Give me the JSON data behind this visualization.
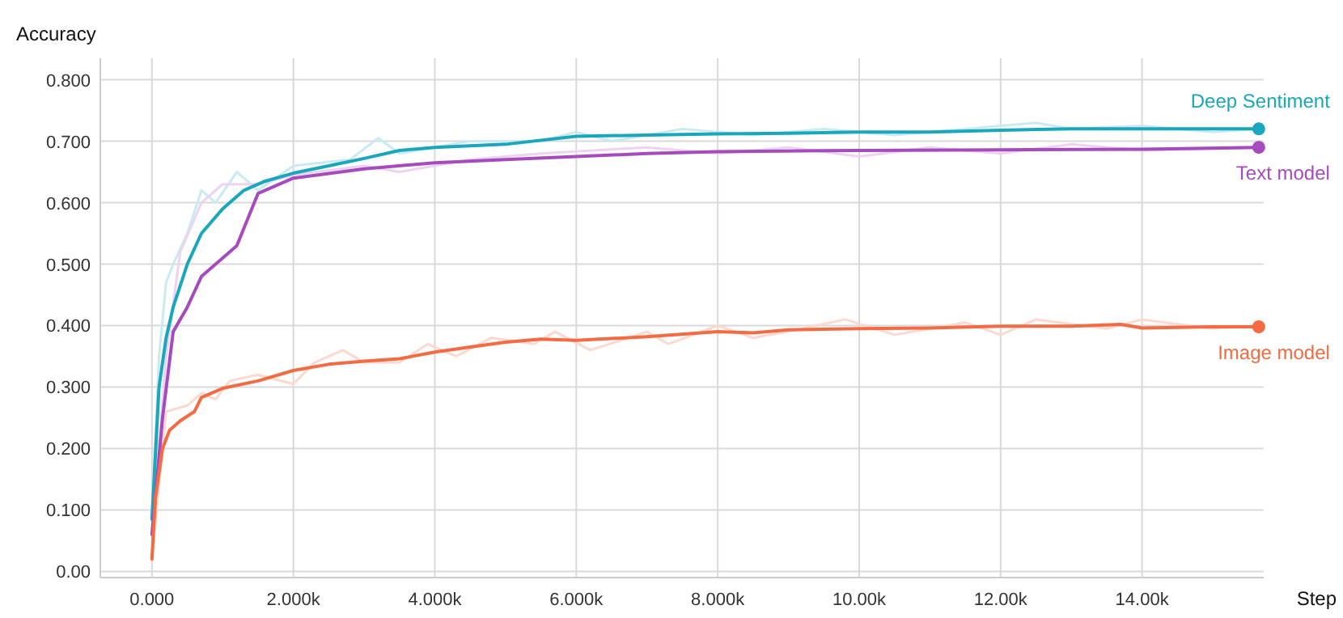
{
  "chart_data": {
    "type": "line",
    "ylabel": "Accuracy",
    "xlabel": "Step",
    "xlim": [
      -730,
      15720
    ],
    "ylim": [
      -0.01,
      0.835
    ],
    "xticks": [
      {
        "value": 0,
        "label": "0.000"
      },
      {
        "value": 2000,
        "label": "2.000k"
      },
      {
        "value": 4000,
        "label": "4.000k"
      },
      {
        "value": 6000,
        "label": "6.000k"
      },
      {
        "value": 8000,
        "label": "8.000k"
      },
      {
        "value": 10000,
        "label": "10.00k"
      },
      {
        "value": 12000,
        "label": "12.00k"
      },
      {
        "value": 14000,
        "label": "14.00k"
      }
    ],
    "yticks": [
      {
        "value": 0,
        "label": "0.00"
      },
      {
        "value": 0.1,
        "label": "0.100"
      },
      {
        "value": 0.2,
        "label": "0.200"
      },
      {
        "value": 0.3,
        "label": "0.300"
      },
      {
        "value": 0.4,
        "label": "0.400"
      },
      {
        "value": 0.5,
        "label": "0.500"
      },
      {
        "value": 0.6,
        "label": "0.600"
      },
      {
        "value": 0.7,
        "label": "0.700"
      },
      {
        "value": 0.8,
        "label": "0.800"
      }
    ],
    "grid": true,
    "series": [
      {
        "color": "#c8eaf0",
        "x": [
          0,
          100,
          200,
          300,
          500,
          700,
          900,
          1200,
          1500,
          2000,
          2800,
          3200,
          3500,
          4500,
          5500,
          6000,
          6500,
          7500,
          8500,
          9500,
          10500,
          11500,
          12500,
          13000,
          14000,
          15000,
          15650
        ],
        "values": [
          0.09,
          0.35,
          0.47,
          0.5,
          0.55,
          0.62,
          0.6,
          0.65,
          0.62,
          0.66,
          0.67,
          0.705,
          0.68,
          0.7,
          0.7,
          0.715,
          0.7,
          0.72,
          0.71,
          0.72,
          0.71,
          0.72,
          0.73,
          0.72,
          0.725,
          0.715,
          0.72
        ]
      },
      {
        "color": "#ecd3f1",
        "x": [
          0,
          200,
          400,
          700,
          1000,
          1500,
          2000,
          3000,
          3500,
          4500,
          5500,
          7000,
          8000,
          9000,
          10000,
          11000,
          12000,
          13000,
          14000,
          15650
        ],
        "values": [
          0.06,
          0.35,
          0.52,
          0.6,
          0.63,
          0.63,
          0.645,
          0.66,
          0.65,
          0.67,
          0.68,
          0.69,
          0.68,
          0.69,
          0.675,
          0.69,
          0.68,
          0.695,
          0.685,
          0.69
        ]
      },
      {
        "color": "#fbd9cf",
        "x": [
          0,
          200,
          500,
          700,
          900,
          1100,
          1500,
          2000,
          2300,
          2700,
          3000,
          3500,
          3900,
          4300,
          4800,
          5400,
          5700,
          6200,
          7000,
          7300,
          8000,
          8500,
          9200,
          9800,
          10500,
          11500,
          12000,
          12500,
          13500,
          14000,
          15000,
          15650
        ],
        "values": [
          0.02,
          0.26,
          0.27,
          0.29,
          0.28,
          0.31,
          0.32,
          0.305,
          0.34,
          0.36,
          0.34,
          0.34,
          0.37,
          0.35,
          0.38,
          0.37,
          0.39,
          0.36,
          0.39,
          0.37,
          0.4,
          0.38,
          0.395,
          0.41,
          0.385,
          0.405,
          0.385,
          0.41,
          0.395,
          0.41,
          0.395,
          0.4
        ]
      },
      {
        "name": "Deep Sentiment",
        "color": "#1aa7bb",
        "x": [
          0,
          100,
          200,
          300,
          500,
          700,
          1000,
          1300,
          1600,
          2000,
          2500,
          3000,
          3500,
          4000,
          5000,
          6000,
          7000,
          8000,
          9000,
          10000,
          11000,
          12000,
          13000,
          14000,
          15650
        ],
        "values": [
          0.085,
          0.3,
          0.38,
          0.43,
          0.5,
          0.55,
          0.59,
          0.62,
          0.635,
          0.648,
          0.66,
          0.672,
          0.685,
          0.69,
          0.695,
          0.708,
          0.71,
          0.712,
          0.713,
          0.715,
          0.715,
          0.718,
          0.72,
          0.72,
          0.72
        ]
      },
      {
        "name": "Text model",
        "color": "#a54bbd",
        "x": [
          0,
          150,
          300,
          500,
          700,
          1000,
          1200,
          1500,
          2000,
          3000,
          4000,
          5000,
          6000,
          7000,
          8000,
          10000,
          12000,
          14000,
          15650
        ],
        "values": [
          0.06,
          0.25,
          0.39,
          0.43,
          0.48,
          0.51,
          0.53,
          0.615,
          0.64,
          0.655,
          0.665,
          0.67,
          0.675,
          0.68,
          0.683,
          0.685,
          0.686,
          0.687,
          0.69
        ]
      },
      {
        "name": "Image model",
        "color": "#f26b43",
        "x": [
          0,
          50,
          150,
          250,
          400,
          600,
          700,
          1000,
          1500,
          2000,
          2500,
          3000,
          3500,
          4000,
          4500,
          5000,
          5500,
          6000,
          7000,
          8000,
          8500,
          9000,
          10000,
          11000,
          12000,
          13000,
          13700,
          14000,
          15000,
          15650
        ],
        "values": [
          0.02,
          0.12,
          0.2,
          0.23,
          0.245,
          0.26,
          0.283,
          0.298,
          0.31,
          0.327,
          0.337,
          0.342,
          0.346,
          0.357,
          0.365,
          0.373,
          0.378,
          0.376,
          0.382,
          0.39,
          0.388,
          0.393,
          0.395,
          0.396,
          0.399,
          0.399,
          0.402,
          0.396,
          0.398,
          0.398
        ]
      }
    ]
  }
}
